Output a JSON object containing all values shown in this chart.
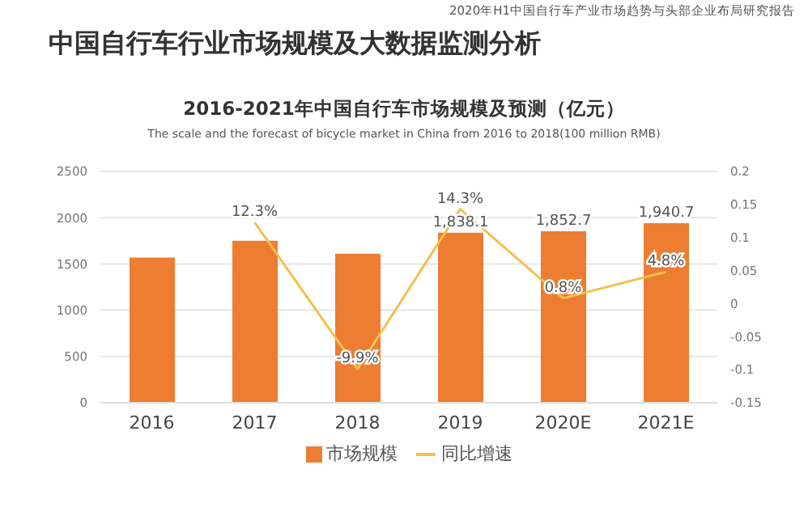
{
  "chart_data": {
    "type": "bar",
    "title": "2016-2021年中国自行车市场规模及预测（亿元）",
    "subtitle": "The scale and the forecast of bicycle market in China from 2016 to 2018(100 million RMB)",
    "annotations": [
      "中国自行车行业市场规模及大数据监测分析",
      "2020年H1中国自行车产业市场趋势与头部企业布局研究报告"
    ],
    "categories": [
      "2016",
      "2017",
      "2018",
      "2019",
      "2020E",
      "2021E"
    ],
    "series": [
      {
        "name": "市场规模",
        "color": "#ed7d31",
        "values": [
          1570,
          1750,
          1610,
          1838.1,
          1852.7,
          1940.7
        ],
        "value_labels": [
          null,
          null,
          null,
          "1,838.1",
          "1,852.7",
          "1,940.7"
        ]
      },
      {
        "name": "同比增速",
        "type": "line",
        "axis": "y2",
        "color": "#f2c14e",
        "values": [
          null,
          0.123,
          -0.099,
          0.143,
          0.008,
          0.048
        ],
        "value_labels": [
          null,
          "12.3%",
          "-9.9%",
          "14.3%",
          "0.8%",
          "4.8%"
        ]
      }
    ],
    "ylim": [
      0,
      2500
    ],
    "yticks": [
      0,
      500,
      1000,
      1500,
      2000,
      2500
    ],
    "y2lim": [
      -0.15,
      0.2
    ],
    "y2ticks": [
      -0.15,
      -0.1,
      -0.05,
      0,
      0.05,
      0.1,
      0.15,
      0.2
    ],
    "grid": "y",
    "legend": "bottom",
    "marker": "none",
    "line_style": "solid"
  }
}
